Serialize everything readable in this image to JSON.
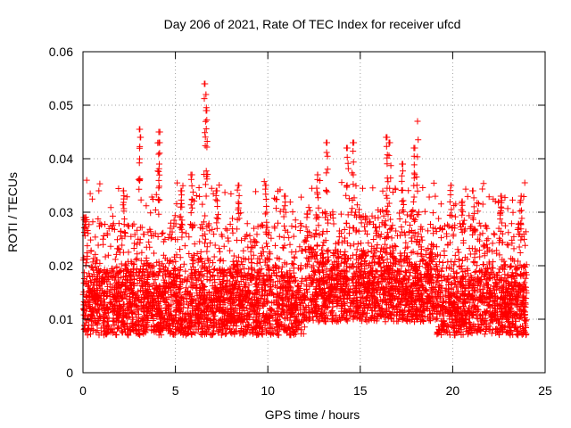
{
  "chart_data": {
    "type": "scatter",
    "title": "Day 206 of 2021, Rate Of TEC Index for receiver ufcd",
    "xlabel": "GPS time / hours",
    "ylabel": "ROTI / TECUs",
    "xlim": [
      0,
      25
    ],
    "ylim": [
      0,
      0.06
    ],
    "x_ticks": [
      0,
      5,
      10,
      15,
      20,
      25
    ],
    "y_ticks": [
      0,
      0.01,
      0.02,
      0.03,
      0.04,
      0.05,
      0.06
    ],
    "x_tick_labels": [
      "0",
      "5",
      "10",
      "15",
      "20",
      "25"
    ],
    "y_tick_labels": [
      "0",
      "0.01",
      "0.02",
      "0.03",
      "0.04",
      "0.05",
      "0.06"
    ],
    "grid": true,
    "marker": "+",
    "marker_color": "#ff0000",
    "series": [
      {
        "name": "ROTI",
        "x_range": [
          0,
          24
        ],
        "typical_range": [
          0.005,
          0.02
        ],
        "spikes": [
          {
            "x": 0.1,
            "y": 0.029
          },
          {
            "x": 2.2,
            "y": 0.034
          },
          {
            "x": 3.05,
            "y": 0.0455
          },
          {
            "x": 3.1,
            "y": 0.044
          },
          {
            "x": 4.1,
            "y": 0.045
          },
          {
            "x": 4.15,
            "y": 0.043
          },
          {
            "x": 5.3,
            "y": 0.034
          },
          {
            "x": 5.9,
            "y": 0.037
          },
          {
            "x": 6.6,
            "y": 0.054
          },
          {
            "x": 6.65,
            "y": 0.052
          },
          {
            "x": 6.7,
            "y": 0.049
          },
          {
            "x": 7.25,
            "y": 0.034
          },
          {
            "x": 8.4,
            "y": 0.035
          },
          {
            "x": 9.9,
            "y": 0.035
          },
          {
            "x": 10.9,
            "y": 0.033
          },
          {
            "x": 12.7,
            "y": 0.037
          },
          {
            "x": 13.2,
            "y": 0.043
          },
          {
            "x": 14.3,
            "y": 0.042
          },
          {
            "x": 14.6,
            "y": 0.043
          },
          {
            "x": 16.45,
            "y": 0.044
          },
          {
            "x": 16.6,
            "y": 0.043
          },
          {
            "x": 17.3,
            "y": 0.039
          },
          {
            "x": 17.9,
            "y": 0.042
          },
          {
            "x": 18.1,
            "y": 0.047
          },
          {
            "x": 19.9,
            "y": 0.035
          },
          {
            "x": 20.5,
            "y": 0.032
          },
          {
            "x": 21.1,
            "y": 0.034
          },
          {
            "x": 22.6,
            "y": 0.033
          },
          {
            "x": 23.7,
            "y": 0.033
          }
        ]
      }
    ]
  }
}
